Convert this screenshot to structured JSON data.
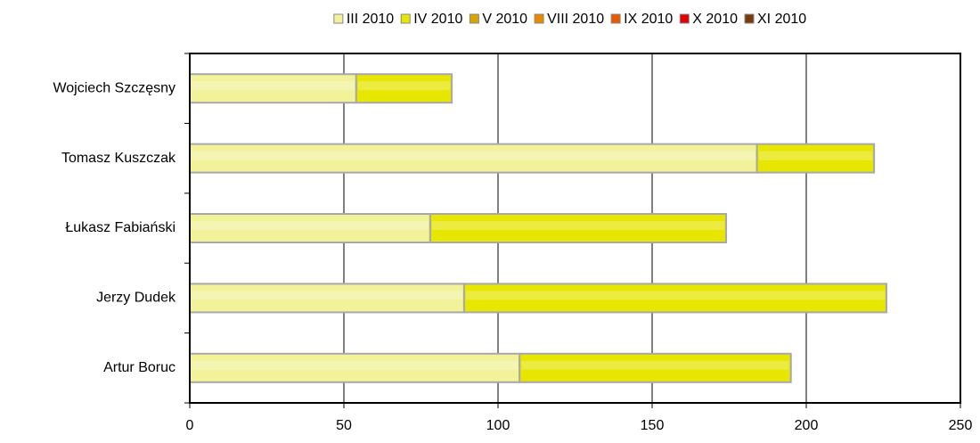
{
  "chart_data": {
    "type": "hbar_stacked",
    "categories": [
      "Wojciech Szczęsny",
      "Tomasz Kuszczak",
      "Łukasz Fabiański",
      "Jerzy Dudek",
      "Artur Boruc"
    ],
    "series": [
      {
        "name": "III 2010",
        "color": "#f2f29a",
        "values": [
          54,
          184,
          78,
          89,
          107
        ]
      },
      {
        "name": "IV 2010",
        "color": "#e6e600",
        "values": [
          31,
          38,
          96,
          137,
          88
        ]
      },
      {
        "name": "V 2010",
        "color": "#d9a400",
        "values": [
          0,
          0,
          0,
          0,
          0
        ]
      },
      {
        "name": "VIII 2010",
        "color": "#e88a00",
        "values": [
          0,
          0,
          0,
          0,
          0
        ]
      },
      {
        "name": "IX 2010",
        "color": "#e85a00",
        "values": [
          0,
          0,
          0,
          0,
          0
        ]
      },
      {
        "name": "X 2010",
        "color": "#e00000",
        "values": [
          0,
          0,
          0,
          0,
          0
        ]
      },
      {
        "name": "XI 2010",
        "color": "#7a3a10",
        "values": [
          0,
          0,
          0,
          0,
          0
        ]
      }
    ],
    "xlim": [
      0,
      250
    ],
    "xticks": [
      0,
      50,
      100,
      150,
      200,
      250
    ],
    "grid": true,
    "legend": "top"
  }
}
